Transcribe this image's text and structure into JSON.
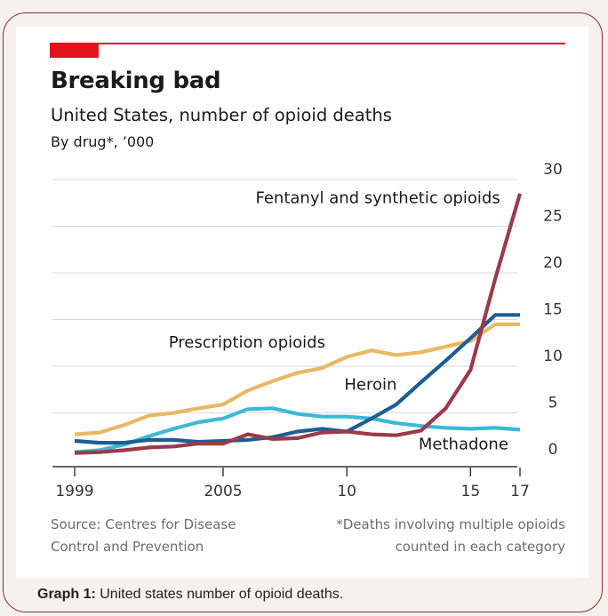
{
  "header": {
    "title": "Breaking bad",
    "subtitle": "United States, number of opioid deaths",
    "unit_note": "By drug*, ’000"
  },
  "footer": {
    "source": "Source: Centres for Disease Control and Prevention",
    "note": "*Deaths involving multiple opioids counted in each category"
  },
  "caption": {
    "label": "Graph 1:",
    "text": " United states number of opioid deaths."
  },
  "colors": {
    "accent_red": "#e2131a",
    "frame": "#8b2f30",
    "fentanyl": "#9b3a4a",
    "heroin": "#1c5e94",
    "prescription": "#e8b964",
    "methadone": "#3cb9d6",
    "grid": "#d9d9d9"
  },
  "chart_data": {
    "type": "line",
    "title": "Breaking bad",
    "subtitle": "United States, number of opioid deaths",
    "ylabel": "By drug*, ’000",
    "xlim": [
      1999,
      2017
    ],
    "ylim": [
      0,
      30
    ],
    "yticks": [
      0,
      5,
      10,
      15,
      20,
      25,
      30
    ],
    "xtick_labels": [
      {
        "year": 1999,
        "label": "1999"
      },
      {
        "year": 2005,
        "label": "2005"
      },
      {
        "year": 2010,
        "label": "10"
      },
      {
        "year": 2015,
        "label": "15"
      },
      {
        "year": 2017,
        "label": "17"
      }
    ],
    "grid": true,
    "x": [
      1999,
      2000,
      2001,
      2002,
      2003,
      2004,
      2005,
      2006,
      2007,
      2008,
      2009,
      2010,
      2011,
      2012,
      2013,
      2014,
      2015,
      2016,
      2017
    ],
    "series": [
      {
        "name": "Fentanyl and synthetic opioids",
        "color_key": "fentanyl",
        "values": [
          0.7,
          0.8,
          1.0,
          1.3,
          1.4,
          1.7,
          1.7,
          2.7,
          2.2,
          2.3,
          2.9,
          3.0,
          2.7,
          2.6,
          3.1,
          5.5,
          9.6,
          19.4,
          28.5
        ]
      },
      {
        "name": "Heroin",
        "color_key": "heroin",
        "values": [
          2.0,
          1.8,
          1.8,
          2.1,
          2.1,
          1.9,
          2.0,
          2.1,
          2.4,
          3.0,
          3.3,
          3.0,
          4.4,
          5.9,
          8.3,
          10.6,
          13.0,
          15.5,
          15.5
        ]
      },
      {
        "name": "Prescription opioids",
        "color_key": "prescription",
        "values": [
          2.7,
          2.9,
          3.7,
          4.7,
          5.0,
          5.5,
          5.9,
          7.4,
          8.4,
          9.3,
          9.8,
          11.0,
          11.7,
          11.2,
          11.5,
          12.1,
          12.7,
          14.5,
          14.5
        ]
      },
      {
        "name": "Methadone",
        "color_key": "methadone",
        "values": [
          0.8,
          1.0,
          1.6,
          2.5,
          3.3,
          4.0,
          4.4,
          5.4,
          5.5,
          4.9,
          4.6,
          4.6,
          4.4,
          3.9,
          3.6,
          3.4,
          3.3,
          3.4,
          3.2
        ]
      }
    ],
    "series_labels": [
      {
        "series": 0,
        "text": "Fentanyl and synthetic opioids",
        "anchor_x": 2016.2,
        "anchor_y": 27.5,
        "align": "end"
      },
      {
        "series": 2,
        "text": "Prescription opioids",
        "anchor_x": 2002.8,
        "anchor_y": 12.0,
        "align": "start"
      },
      {
        "series": 1,
        "text": "Heroin",
        "anchor_x": 2009.9,
        "anchor_y": 7.5,
        "align": "start"
      },
      {
        "series": 3,
        "text": "Methadone",
        "anchor_x": 2012.9,
        "anchor_y": 1.1,
        "align": "start"
      }
    ]
  }
}
